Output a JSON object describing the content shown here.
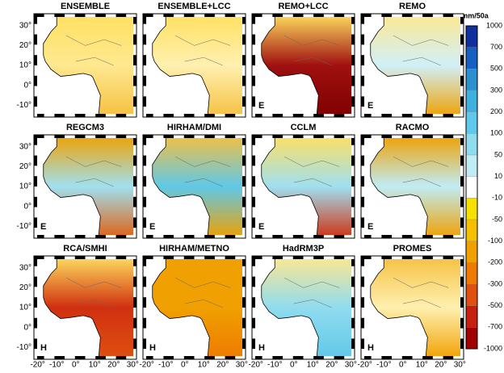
{
  "panels": [
    {
      "title": "ENSEMBLE",
      "fill": [
        "#ffe060",
        "#ffe890",
        "#f5c040"
      ]
    },
    {
      "title": "ENSEMBLE+LCC",
      "fill": [
        "#ffe060",
        "#fff0b0",
        "#f5c040"
      ]
    },
    {
      "title": "REMO+LCC",
      "label": "E",
      "fill": [
        "#ffe060",
        "#a01010",
        "#800000"
      ]
    },
    {
      "title": "REMO",
      "label": "E",
      "fill": [
        "#ffe890",
        "#d0f0f8",
        "#f0a000"
      ]
    },
    {
      "title": "REGCM3",
      "label": "E",
      "fill": [
        "#f0a000",
        "#a0e0f0",
        "#e06010"
      ]
    },
    {
      "title": "HIRHAM/DMI",
      "label": "E",
      "fill": [
        "#f5c040",
        "#60c8e8",
        "#f0a000"
      ]
    },
    {
      "title": "CCLM",
      "label": "E",
      "fill": [
        "#ffe060",
        "#a0e0f0",
        "#d03010"
      ]
    },
    {
      "title": "RACMO",
      "label": "E",
      "fill": [
        "#f0a000",
        "#c0ecf5",
        "#f0a000"
      ]
    },
    {
      "title": "RCA/SMHI",
      "label": "H",
      "fill": [
        "#ffe060",
        "#d03010",
        "#e05010"
      ]
    },
    {
      "title": "HIRHAM/METNO",
      "label": "H",
      "fill": [
        "#f0a000",
        "#f0a000",
        "#ee7a00"
      ]
    },
    {
      "title": "HadRM3P",
      "label": "H",
      "fill": [
        "#ffe890",
        "#90dcef",
        "#60c8e8"
      ]
    },
    {
      "title": "PROMES",
      "label": "H",
      "fill": [
        "#f5c040",
        "#fff0b0",
        "#f0a000"
      ]
    }
  ],
  "lat_labels": [
    "30°",
    "20°",
    "10°",
    "0°",
    "-10°"
  ],
  "lon_labels": [
    "-20°",
    "-10°",
    "0°",
    "10°",
    "20°",
    "30°"
  ],
  "colorbar": {
    "unit": "mm/50a",
    "labels": [
      "1000",
      "700",
      "500",
      "300",
      "200",
      "100",
      "50",
      "10",
      "-10",
      "-50",
      "-100",
      "-200",
      "-300",
      "-500",
      "-700",
      "-1000"
    ],
    "colors": [
      "#1030a0",
      "#1560c0",
      "#2a90d0",
      "#3fb0e0",
      "#60c8e8",
      "#90dcef",
      "#c0ecf5",
      "#ffffff",
      "#f5e000",
      "#f5c000",
      "#f0a000",
      "#ee7a00",
      "#e05010",
      "#c82010",
      "#a00000"
    ]
  }
}
